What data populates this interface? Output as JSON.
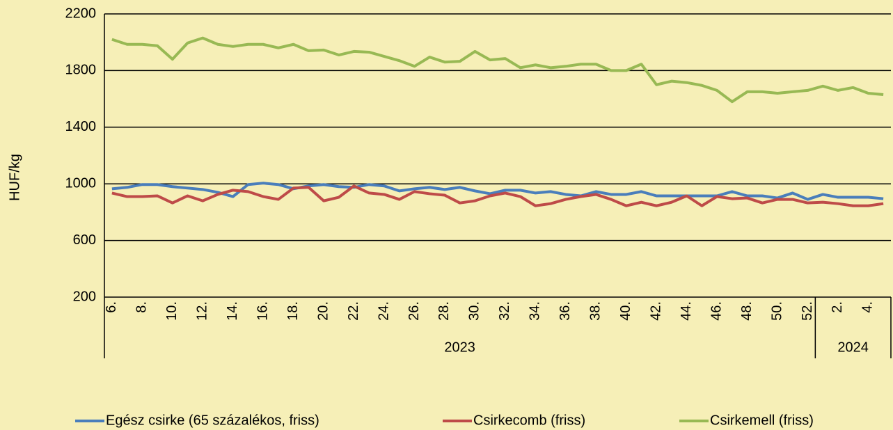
{
  "chart_data": {
    "type": "line",
    "y_label": "HUF/kg",
    "categories": [
      "6.",
      null,
      "8.",
      null,
      "10.",
      null,
      "12.",
      null,
      "14.",
      null,
      "16.",
      null,
      "18.",
      null,
      "20.",
      null,
      "22.",
      null,
      "24.",
      null,
      "26.",
      null,
      "28.",
      null,
      "30.",
      null,
      "32.",
      null,
      "34.",
      null,
      "36.",
      null,
      "38.",
      null,
      "40.",
      null,
      "42.",
      null,
      "44.",
      null,
      "46.",
      null,
      "48.",
      null,
      "50.",
      null,
      "52.",
      null,
      "2.",
      null,
      "4.",
      null
    ],
    "groups": [
      {
        "label": "2023",
        "span": 47
      },
      {
        "label": "2024",
        "span": 5
      }
    ],
    "series": [
      {
        "name": "Egész csirke (65 százalékos, friss)",
        "color": "#4a7ebb",
        "values": [
          965,
          975,
          995,
          995,
          980,
          970,
          960,
          940,
          910,
          995,
          1005,
          995,
          965,
          985,
          995,
          980,
          975,
          995,
          985,
          950,
          965,
          975,
          960,
          975,
          950,
          930,
          955,
          955,
          935,
          945,
          925,
          915,
          945,
          925,
          925,
          945,
          915,
          915,
          915,
          915,
          915,
          945,
          915,
          915,
          900,
          935,
          890,
          925,
          905,
          905,
          905,
          895
        ]
      },
      {
        "name": "Csirkecomb (friss)",
        "color": "#be4b48",
        "values": [
          935,
          910,
          910,
          915,
          865,
          915,
          880,
          925,
          955,
          945,
          910,
          890,
          970,
          975,
          880,
          905,
          985,
          935,
          925,
          890,
          945,
          930,
          920,
          865,
          880,
          915,
          935,
          910,
          845,
          860,
          890,
          910,
          925,
          890,
          845,
          870,
          845,
          870,
          915,
          845,
          910,
          895,
          900,
          865,
          890,
          890,
          865,
          870,
          860,
          845,
          845,
          860
        ]
      },
      {
        "name": "Csirkemell (friss)",
        "color": "#98b954",
        "values": [
          2020,
          1985,
          1985,
          1975,
          1880,
          1995,
          2030,
          1985,
          1970,
          1985,
          1985,
          1960,
          1985,
          1940,
          1945,
          1910,
          1935,
          1930,
          1900,
          1870,
          1830,
          1895,
          1860,
          1865,
          1935,
          1875,
          1885,
          1820,
          1840,
          1820,
          1830,
          1845,
          1845,
          1800,
          1800,
          1845,
          1700,
          1725,
          1715,
          1695,
          1660,
          1580,
          1650,
          1650,
          1640,
          1650,
          1660,
          1690,
          1660,
          1680,
          1640,
          1630
        ]
      }
    ],
    "ylim": [
      200,
      2200
    ],
    "yticks": [
      200,
      600,
      1000,
      1400,
      1800,
      2200
    ],
    "grid": true
  }
}
